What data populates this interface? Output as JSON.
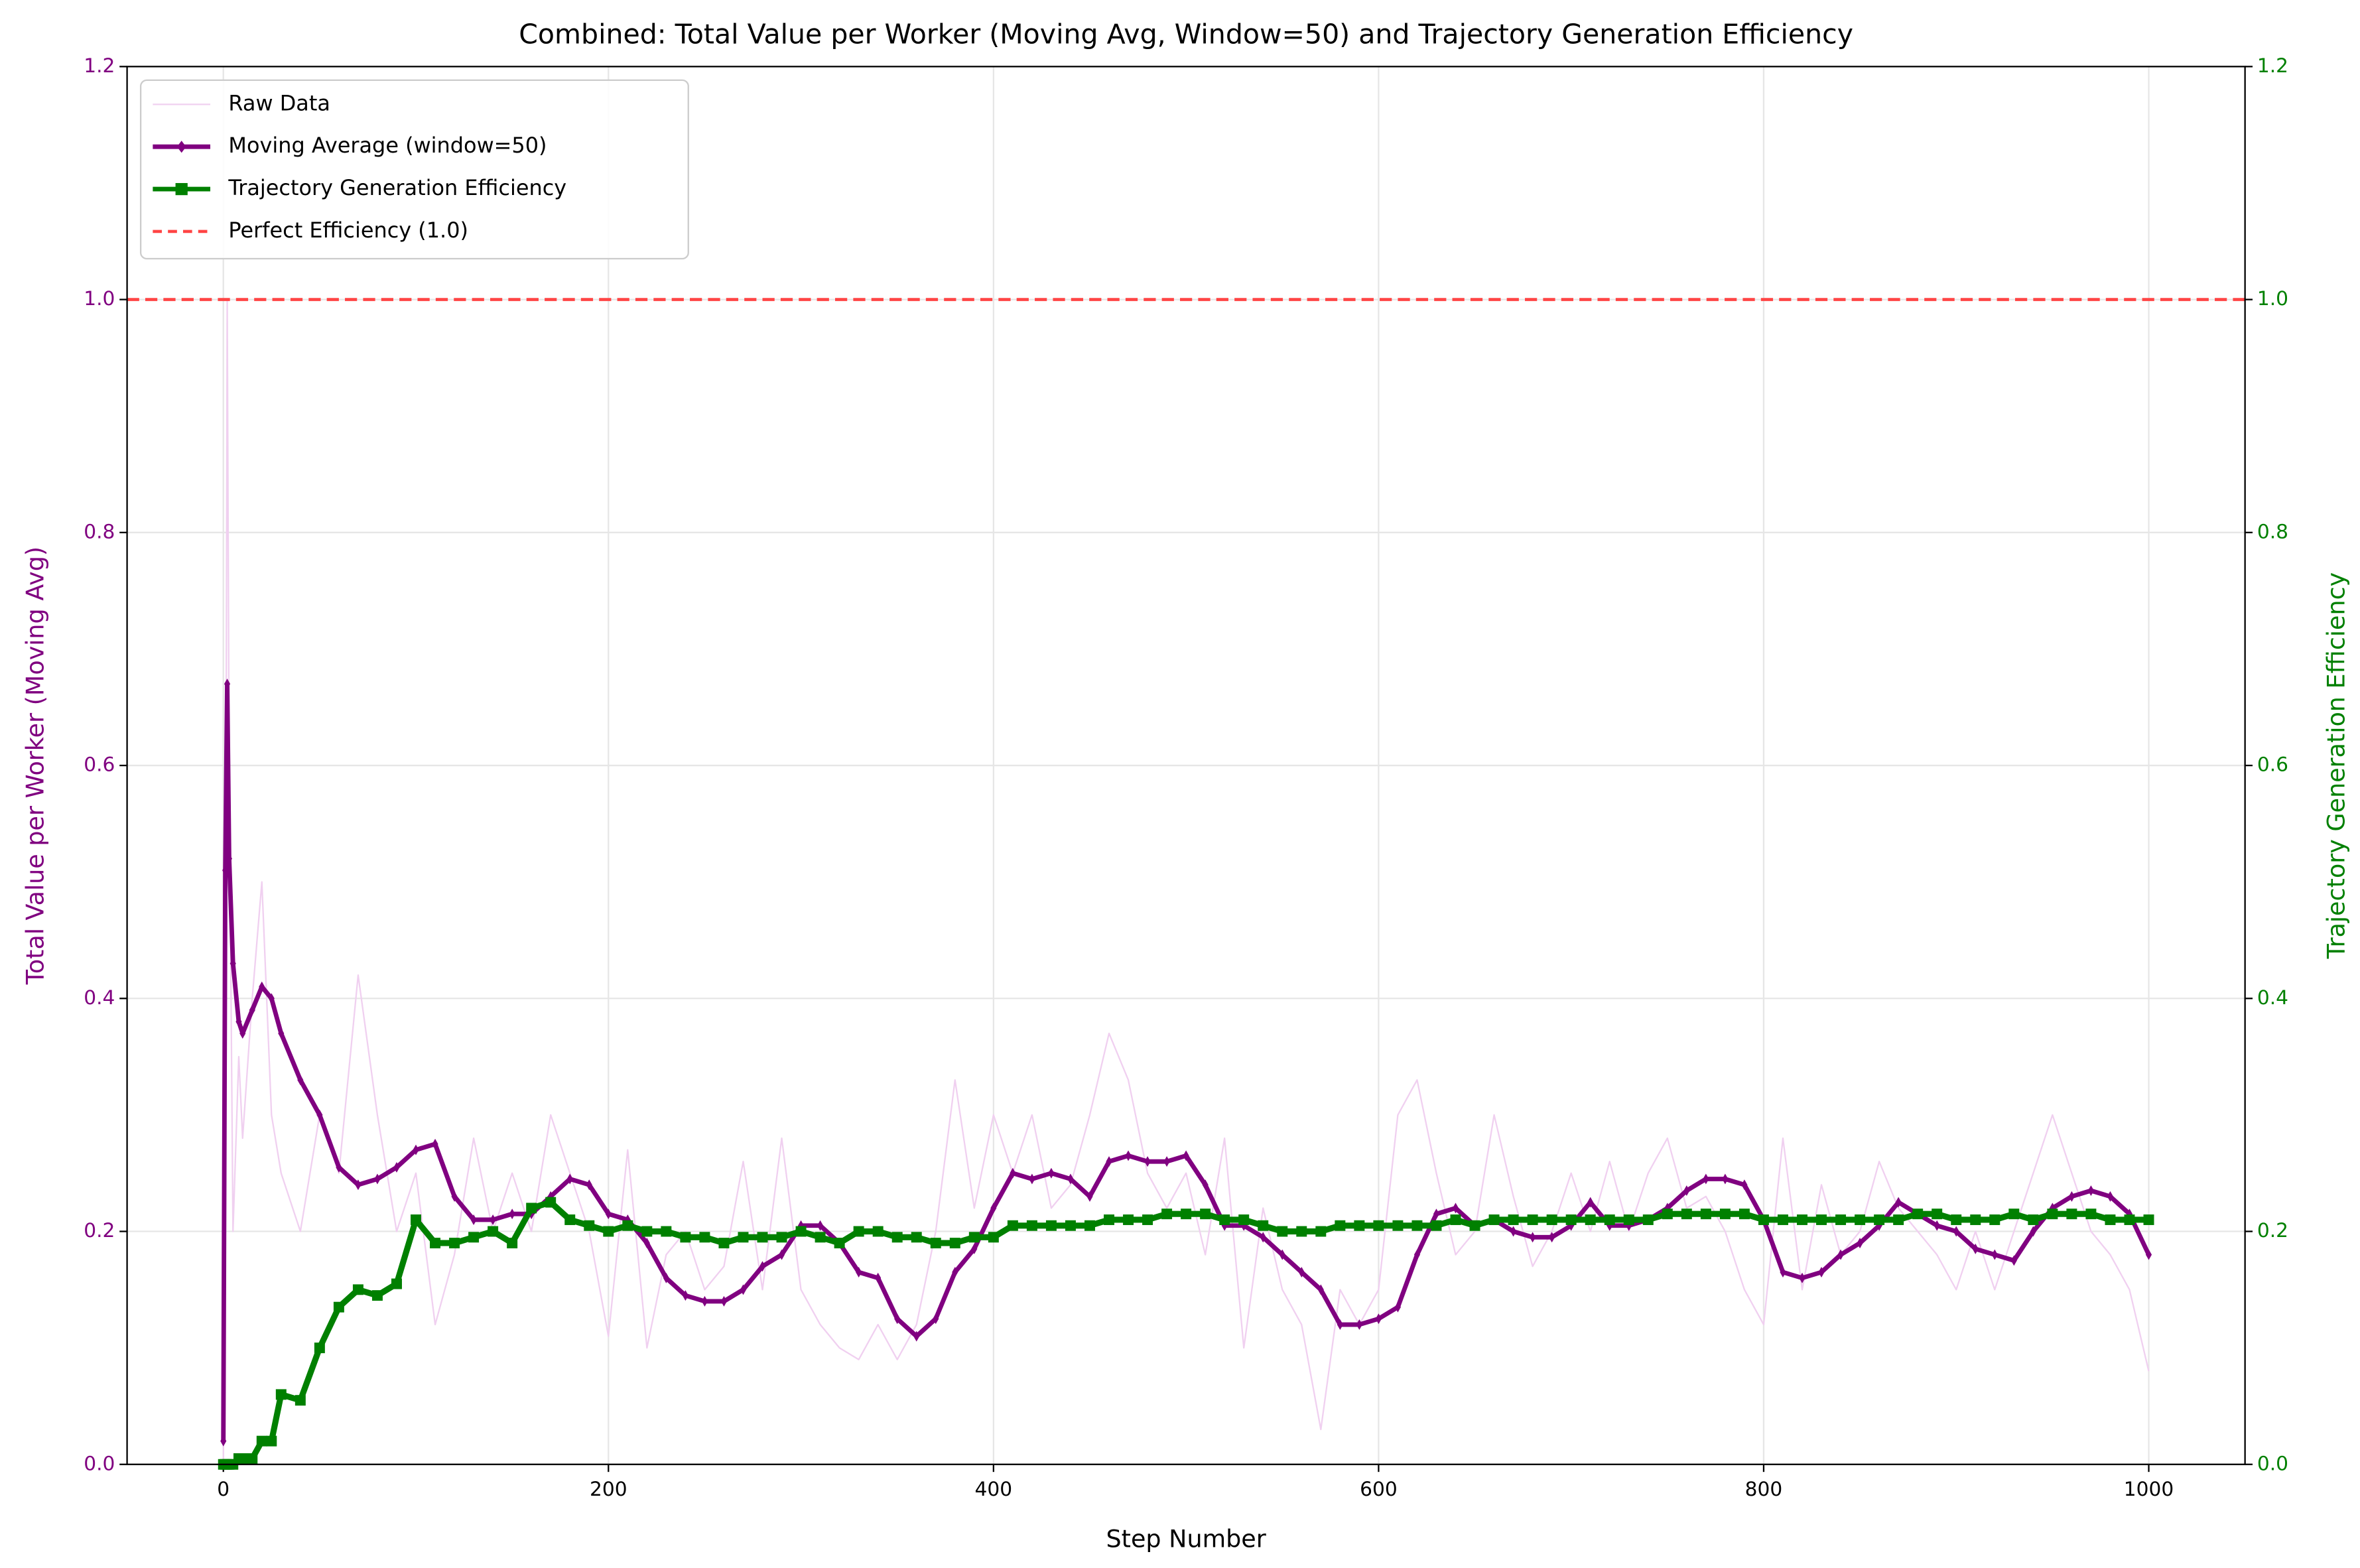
{
  "chart_data": {
    "type": "line",
    "title": "Combined: Total Value per Worker (Moving Avg, Window=50) and Trajectory Generation Efficiency",
    "x_label": "Step Number",
    "y_label": "Total Value per Worker (Moving Avg)",
    "y2_label": "Trajectory Generation Efficiency",
    "x": [
      0,
      1,
      2,
      3,
      5,
      8,
      10,
      15,
      20,
      25,
      30,
      40,
      50,
      60,
      70,
      80,
      90,
      100,
      110,
      120,
      130,
      140,
      150,
      160,
      170,
      180,
      190,
      200,
      210,
      220,
      230,
      240,
      250,
      260,
      270,
      280,
      290,
      300,
      310,
      320,
      330,
      340,
      350,
      360,
      370,
      380,
      390,
      400,
      410,
      420,
      430,
      440,
      450,
      460,
      470,
      480,
      490,
      500,
      510,
      520,
      530,
      540,
      550,
      560,
      570,
      580,
      590,
      600,
      610,
      620,
      630,
      640,
      650,
      660,
      670,
      680,
      690,
      700,
      710,
      720,
      730,
      740,
      750,
      760,
      770,
      780,
      790,
      800,
      810,
      820,
      830,
      840,
      850,
      860,
      870,
      880,
      890,
      900,
      910,
      920,
      930,
      940,
      950,
      960,
      970,
      980,
      990,
      1000
    ],
    "series": [
      {
        "name": "Raw Data",
        "color": "#f0d0f0",
        "marker": "none",
        "values": [
          0,
          0.3,
          1.0,
          0.6,
          0.2,
          0.35,
          0.28,
          0.4,
          0.5,
          0.3,
          0.25,
          0.2,
          0.3,
          0.25,
          0.42,
          0.3,
          0.2,
          0.25,
          0.12,
          0.18,
          0.28,
          0.2,
          0.25,
          0.2,
          0.3,
          0.25,
          0.2,
          0.11,
          0.27,
          0.1,
          0.18,
          0.2,
          0.15,
          0.17,
          0.26,
          0.15,
          0.28,
          0.15,
          0.12,
          0.1,
          0.09,
          0.12,
          0.09,
          0.12,
          0.2,
          0.33,
          0.22,
          0.3,
          0.25,
          0.3,
          0.22,
          0.24,
          0.3,
          0.37,
          0.33,
          0.25,
          0.22,
          0.25,
          0.18,
          0.28,
          0.1,
          0.22,
          0.15,
          0.12,
          0.03,
          0.15,
          0.12,
          0.15,
          0.3,
          0.33,
          0.25,
          0.18,
          0.2,
          0.3,
          0.23,
          0.17,
          0.2,
          0.25,
          0.2,
          0.26,
          0.2,
          0.25,
          0.28,
          0.22,
          0.23,
          0.2,
          0.15,
          0.12,
          0.28,
          0.15,
          0.24,
          0.18,
          0.2,
          0.26,
          0.22,
          0.2,
          0.18,
          0.15,
          0.2,
          0.15,
          0.2,
          0.25,
          0.3,
          0.25,
          0.2,
          0.18,
          0.15,
          0.08
        ]
      },
      {
        "name": "Moving Average (window=50)",
        "color": "#800080",
        "marker": "diamond",
        "values": [
          0.02,
          0.51,
          0.67,
          0.52,
          0.43,
          0.38,
          0.37,
          0.39,
          0.41,
          0.4,
          0.37,
          0.33,
          0.3,
          0.255,
          0.24,
          0.245,
          0.255,
          0.27,
          0.275,
          0.23,
          0.21,
          0.21,
          0.215,
          0.215,
          0.23,
          0.245,
          0.24,
          0.215,
          0.21,
          0.19,
          0.16,
          0.145,
          0.14,
          0.14,
          0.15,
          0.17,
          0.18,
          0.205,
          0.205,
          0.19,
          0.165,
          0.16,
          0.125,
          0.11,
          0.125,
          0.165,
          0.185,
          0.22,
          0.25,
          0.245,
          0.25,
          0.245,
          0.23,
          0.26,
          0.265,
          0.26,
          0.26,
          0.265,
          0.24,
          0.205,
          0.205,
          0.195,
          0.18,
          0.165,
          0.15,
          0.12,
          0.12,
          0.125,
          0.135,
          0.18,
          0.215,
          0.22,
          0.205,
          0.21,
          0.2,
          0.195,
          0.195,
          0.205,
          0.225,
          0.205,
          0.205,
          0.21,
          0.22,
          0.235,
          0.245,
          0.245,
          0.24,
          0.21,
          0.165,
          0.16,
          0.165,
          0.18,
          0.19,
          0.205,
          0.225,
          0.215,
          0.205,
          0.2,
          0.185,
          0.18,
          0.175,
          0.2,
          0.22,
          0.23,
          0.235,
          0.23,
          0.215,
          0.18
        ]
      },
      {
        "name": "Trajectory Generation Efficiency",
        "color": "#008000",
        "marker": "square",
        "axis": "y2",
        "values": [
          0,
          0,
          0,
          0,
          0,
          0.005,
          0.005,
          0.005,
          0.02,
          0.02,
          0.06,
          0.055,
          0.1,
          0.135,
          0.15,
          0.145,
          0.155,
          0.21,
          0.19,
          0.19,
          0.195,
          0.2,
          0.19,
          0.22,
          0.225,
          0.21,
          0.205,
          0.2,
          0.205,
          0.2,
          0.2,
          0.195,
          0.195,
          0.19,
          0.195,
          0.195,
          0.195,
          0.2,
          0.195,
          0.19,
          0.2,
          0.2,
          0.195,
          0.195,
          0.19,
          0.19,
          0.195,
          0.195,
          0.205,
          0.205,
          0.205,
          0.205,
          0.205,
          0.21,
          0.21,
          0.21,
          0.215,
          0.215,
          0.215,
          0.21,
          0.21,
          0.205,
          0.2,
          0.2,
          0.2,
          0.205,
          0.205,
          0.205,
          0.205,
          0.205,
          0.205,
          0.21,
          0.205,
          0.21,
          0.21,
          0.21,
          0.21,
          0.21,
          0.21,
          0.21,
          0.21,
          0.21,
          0.215,
          0.215,
          0.215,
          0.215,
          0.215,
          0.21,
          0.21,
          0.21,
          0.21,
          0.21,
          0.21,
          0.21,
          0.21,
          0.215,
          0.215,
          0.21,
          0.21,
          0.21,
          0.215,
          0.21,
          0.215,
          0.215,
          0.215,
          0.21,
          0.21,
          0.21
        ]
      }
    ],
    "reference_line": {
      "name": "Perfect Efficiency (1.0)",
      "value": 1.0,
      "color": "#ff4444"
    },
    "xlim": [
      -50,
      1050
    ],
    "xticks": [
      0,
      200,
      400,
      600,
      800,
      1000
    ],
    "ylim": [
      0,
      1.2
    ],
    "yticks": [
      {
        "value": 0,
        "label": "0.0"
      },
      {
        "value": 0.2,
        "label": "0.2"
      },
      {
        "value": 0.4,
        "label": "0.4"
      },
      {
        "value": 0.6,
        "label": "0.6"
      },
      {
        "value": 0.8,
        "label": "0.8"
      },
      {
        "value": 1.0,
        "label": "1.0"
      },
      {
        "value": 1.2,
        "label": "1.2"
      }
    ],
    "y2lim": [
      0,
      1.2
    ],
    "y2ticks": [
      {
        "value": 0,
        "label": "0.0"
      },
      {
        "value": 0.2,
        "label": "0.2"
      },
      {
        "value": 0.4,
        "label": "0.4"
      },
      {
        "value": 0.6,
        "label": "0.6"
      },
      {
        "value": 0.8,
        "label": "0.8"
      },
      {
        "value": 1.0,
        "label": "1.0"
      },
      {
        "value": 1.2,
        "label": "1.2"
      }
    ],
    "y_color": "#800080",
    "y2_color": "#008000",
    "grid": true,
    "legend": "upper left"
  }
}
